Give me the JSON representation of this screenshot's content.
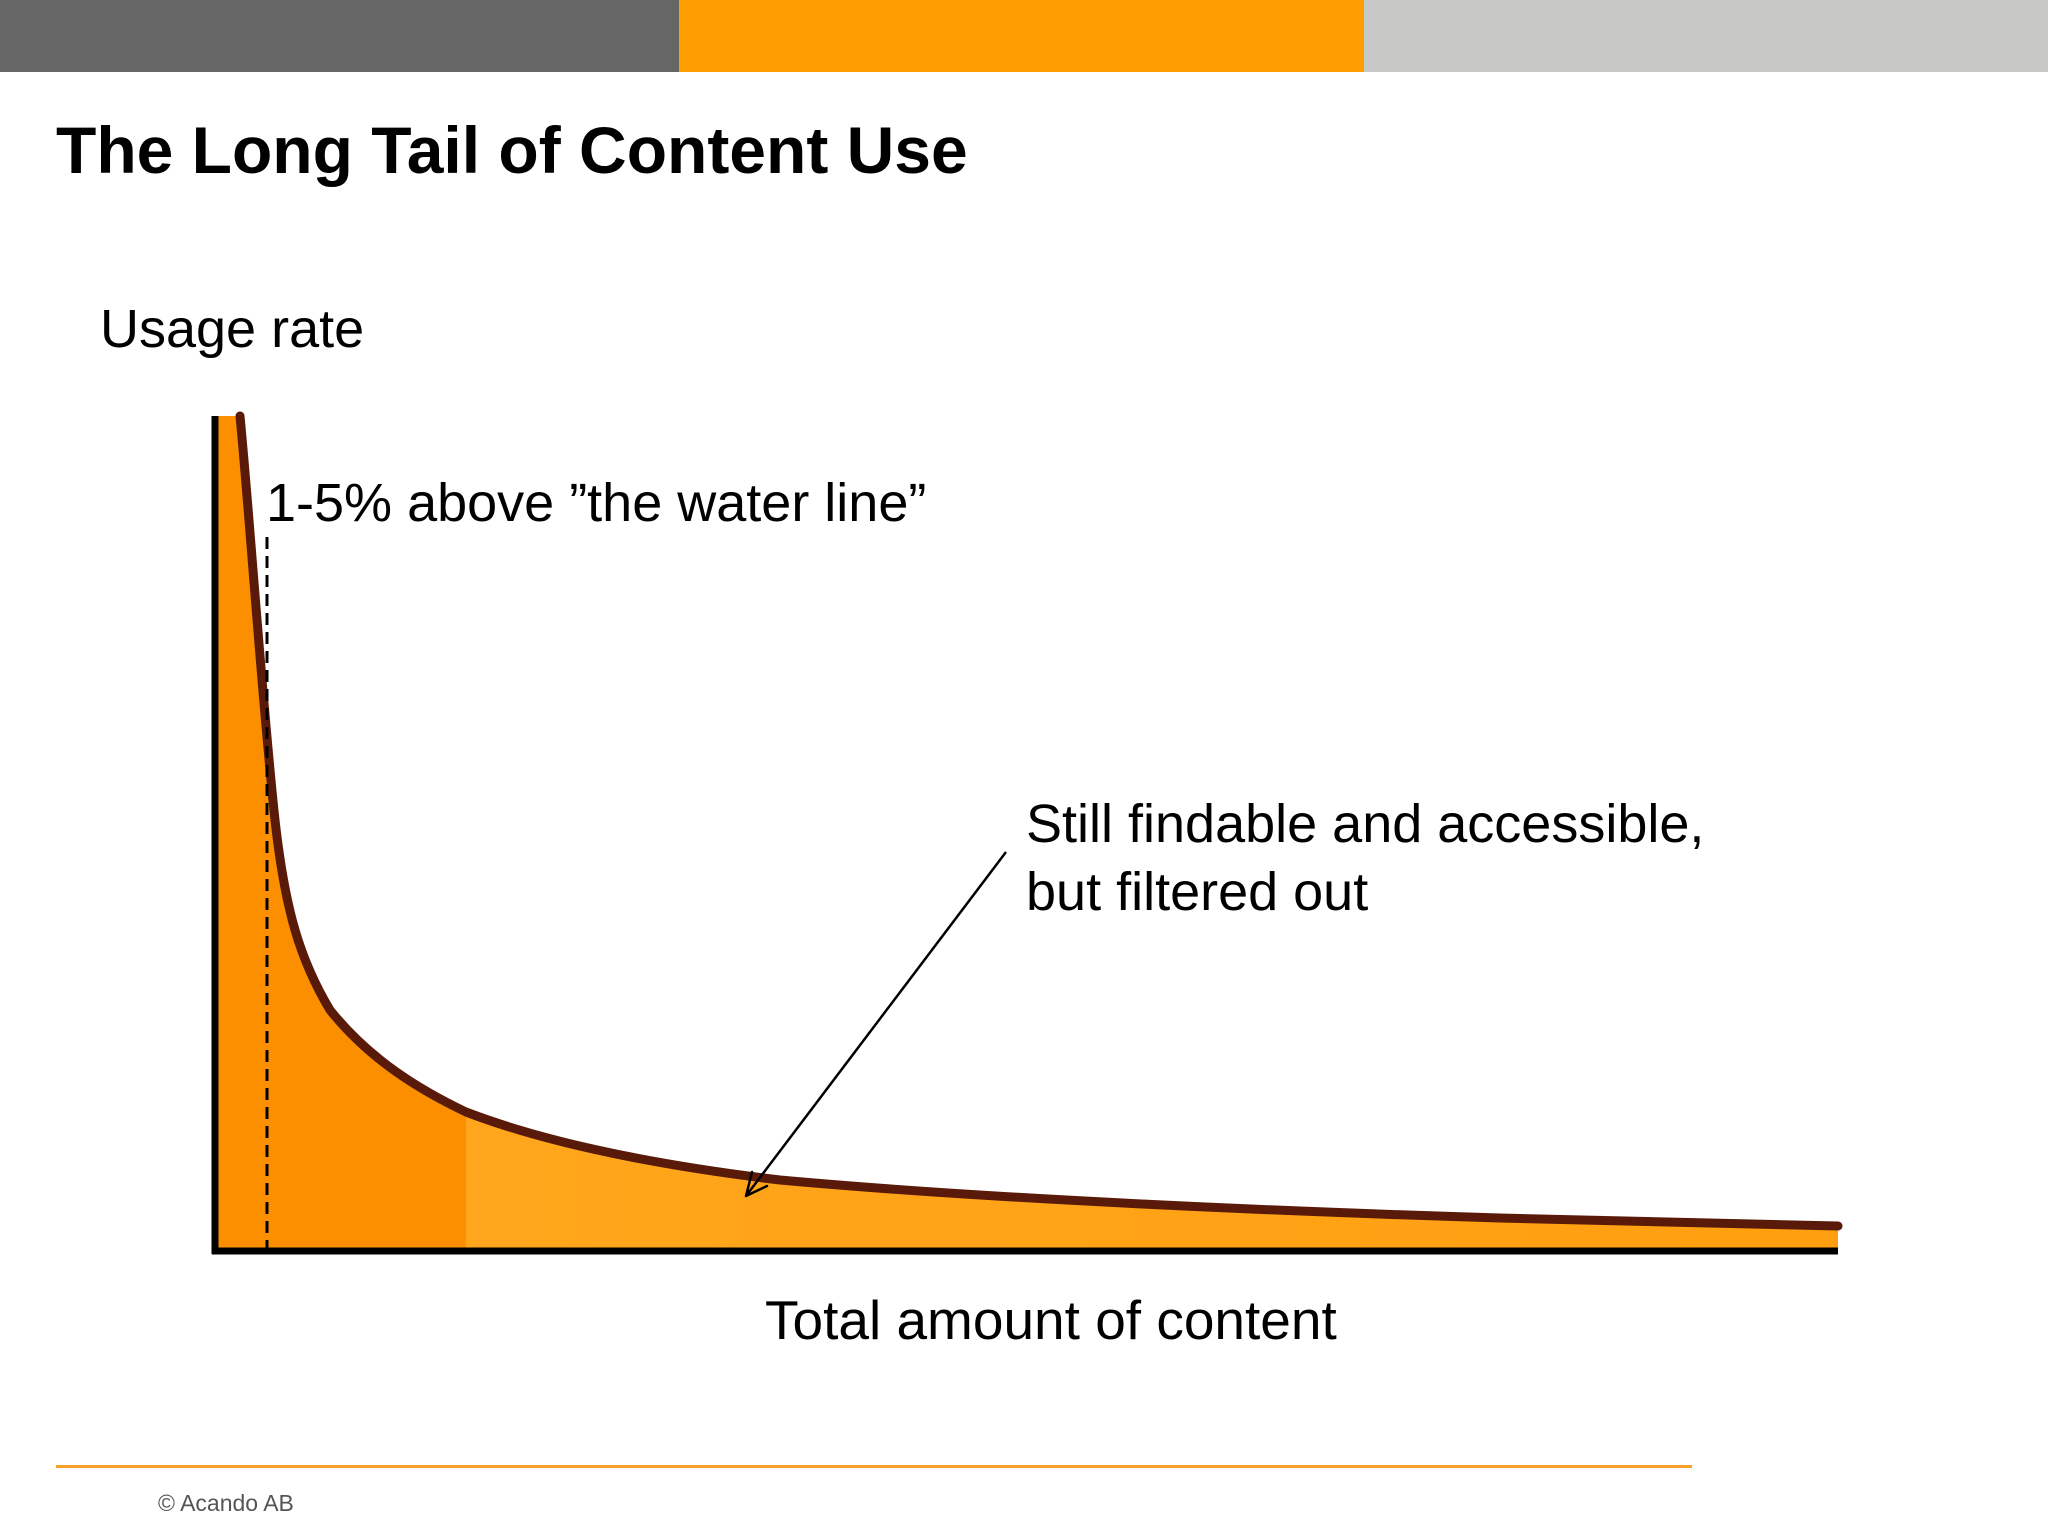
{
  "header_bar": {
    "segment_colors": [
      "#666666",
      "#ff9e00",
      "#c8c9c6"
    ]
  },
  "slide": {
    "title": "The Long Tail of Content Use"
  },
  "diagram": {
    "y_axis_label": "Usage rate",
    "x_axis_label": "Total amount of content",
    "annotation_water_line": "1-5% above ”the water line”",
    "annotation_tail_line1": "Still findable and accessible,",
    "annotation_tail_line2": "but filtered out",
    "curve_color": "#5a1a0a",
    "fill_color_head": "#fb8f00",
    "fill_color_tail": "#ffa51a"
  },
  "footer": {
    "copyright": "© Acando AB",
    "logo": "acando",
    "accent_color": "#f6a22a"
  }
}
